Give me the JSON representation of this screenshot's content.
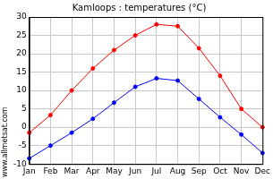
{
  "chart_data": {
    "type": "line",
    "title": "Kamloops : temperatures (°C)",
    "annotations": [
      "www.allmetsat.com"
    ],
    "categories": [
      "Jan",
      "Feb",
      "Mar",
      "Apr",
      "May",
      "Jun",
      "Jul",
      "Aug",
      "Sep",
      "Oct",
      "Nov",
      "Dec"
    ],
    "series": [
      {
        "color": "#ff0000",
        "marker": "circle",
        "values": [
          -1.5,
          3.3,
          10,
          16,
          21,
          25,
          28,
          27.5,
          21.5,
          14,
          5,
          0
        ]
      },
      {
        "color": "#0000ff",
        "marker": "circle",
        "values": [
          -8.5,
          -5,
          -1.5,
          2.3,
          6.7,
          11,
          13.3,
          12.7,
          7.7,
          2.7,
          -2,
          -7
        ]
      }
    ],
    "ylim": [
      -10,
      30
    ],
    "yticks": [
      -10,
      -5,
      0,
      5,
      10,
      15,
      20,
      25,
      30
    ],
    "grid": true
  }
}
